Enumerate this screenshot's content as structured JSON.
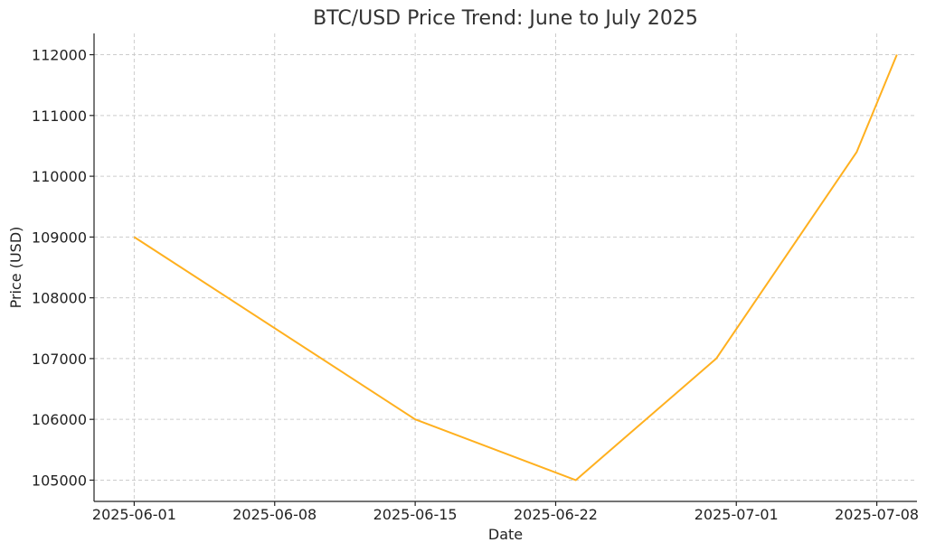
{
  "chart_data": {
    "type": "line",
    "title": "BTC/USD Price Trend: June to July 2025",
    "xlabel": "Date",
    "ylabel": "Price (USD)",
    "x": [
      "2025-06-01",
      "2025-06-15",
      "2025-06-23",
      "2025-06-30",
      "2025-07-07",
      "2025-07-09"
    ],
    "series": [
      {
        "values": [
          109000,
          106000,
          105000,
          107000,
          110400,
          112000
        ],
        "color": "#FFB01F"
      }
    ],
    "xlim": [
      "2025-05-30",
      "2025-07-10"
    ],
    "ylim": [
      104650,
      112350
    ],
    "x_ticks": [
      "2025-06-01",
      "2025-06-08",
      "2025-06-15",
      "2025-06-22",
      "2025-07-01",
      "2025-07-08"
    ],
    "y_ticks": [
      105000,
      106000,
      107000,
      108000,
      109000,
      110000,
      111000,
      112000
    ],
    "grid": true
  }
}
